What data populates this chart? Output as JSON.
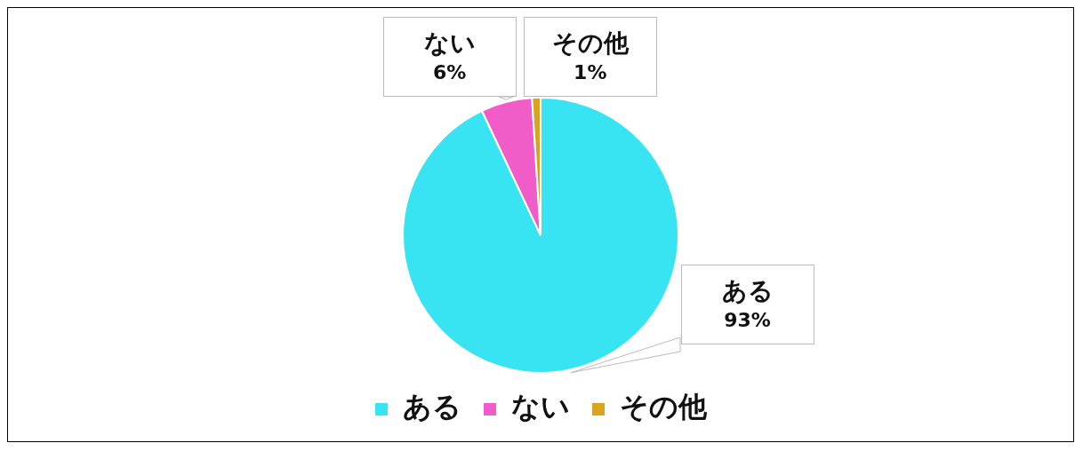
{
  "chart_data": {
    "type": "pie",
    "categories": [
      "ある",
      "ない",
      "その他"
    ],
    "values": [
      93,
      6,
      1
    ],
    "colors": [
      "#38e4f2",
      "#f05cc8",
      "#d9a520"
    ],
    "value_labels": [
      "93%",
      "6%",
      "1%"
    ],
    "legend": "bottom"
  }
}
